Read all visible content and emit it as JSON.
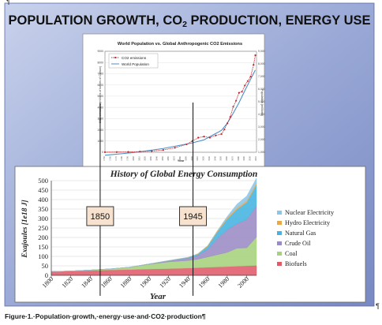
{
  "slide": {
    "title_before": "POPULATION GROWTH, CO",
    "title_sub": "2",
    "title_after": " PRODUCTION, ENERGY USE",
    "background": "#9aa9d6"
  },
  "caption": "Figure·1.·Population·growth,·energy·use·and·CO2·production¶",
  "pilcrows": [
    "¶",
    "¶"
  ],
  "chart_data": [
    {
      "type": "line",
      "title": "World Population vs. Global Anthropogenic CO2 Emissions",
      "xlabel": "Year",
      "ylabel": "CO2 emissions (millions of tonnes of Carbon)",
      "y2label": "Population (millions)",
      "ylim": [
        0,
        9000
      ],
      "y2lim": [
        1000,
        8000
      ],
      "yticks": [
        0,
        1000,
        2000,
        3000,
        4000,
        5000,
        6000,
        7000,
        8000,
        9000
      ],
      "y2ticks": [
        "1,000",
        "2,000",
        "3,000",
        "4,000",
        "5,000",
        "6,000",
        "7,000",
        "8,000",
        "9,000"
      ],
      "legend_position": "top-left",
      "grid": true,
      "colors": {
        "co2": "#c0282d",
        "population": "#4a90c8"
      },
      "series": [
        {
          "name": "CO2 emissions",
          "x": [
            1750,
            1770,
            1790,
            1810,
            1830,
            1850,
            1870,
            1890,
            1900,
            1910,
            1920,
            1930,
            1940,
            1950,
            1955,
            1960,
            1965,
            1970,
            1975,
            1980,
            1985,
            1990,
            1995,
            2000,
            2005,
            2008
          ],
          "values": [
            10,
            20,
            30,
            60,
            100,
            200,
            400,
            700,
            1000,
            1300,
            1400,
            1300,
            1500,
            1630,
            2050,
            2580,
            3150,
            4050,
            4600,
            5300,
            5400,
            5950,
            6350,
            6750,
            7800,
            8650
          ]
        },
        {
          "name": "World Population",
          "x": [
            1750,
            1800,
            1850,
            1900,
            1920,
            1940,
            1950,
            1960,
            1970,
            1980,
            1990,
            2000,
            2008
          ],
          "values": [
            790,
            980,
            1260,
            1650,
            1860,
            2300,
            2520,
            3020,
            3700,
            4440,
            5270,
            6080,
            6700
          ]
        }
      ]
    },
    {
      "type": "area",
      "title": "History of Global Energy Consumption",
      "xlabel": "Year",
      "ylabel": "Exajoules [1e18 J]",
      "ylim": [
        0,
        500
      ],
      "yticks": [
        0,
        50,
        100,
        150,
        200,
        250,
        300,
        350,
        400,
        450,
        500
      ],
      "xticks": [
        1800,
        1820,
        1840,
        1860,
        1880,
        1900,
        1920,
        1940,
        1960,
        1980,
        2000
      ],
      "legend_position": "right",
      "grid": true,
      "x": [
        1800,
        1820,
        1840,
        1860,
        1880,
        1900,
        1920,
        1940,
        1950,
        1960,
        1970,
        1980,
        1990,
        2000,
        2010
      ],
      "series": [
        {
          "name": "Biofuels",
          "color": "#e05a6a",
          "values": [
            20,
            22,
            25,
            28,
            30,
            33,
            35,
            38,
            40,
            42,
            44,
            46,
            48,
            50,
            52
          ]
        },
        {
          "name": "Coal",
          "color": "#a6d17d",
          "values": [
            0,
            1,
            3,
            6,
            12,
            25,
            36,
            40,
            45,
            55,
            65,
            75,
            95,
            95,
            150
          ]
        },
        {
          "name": "Crude Oil",
          "color": "#9b8bc4",
          "values": [
            0,
            0,
            0,
            0,
            1,
            2,
            5,
            12,
            20,
            40,
            85,
            120,
            130,
            150,
            165
          ]
        },
        {
          "name": "Natural Gas",
          "color": "#46b4e0",
          "values": [
            0,
            0,
            0,
            0,
            0,
            0,
            1,
            3,
            6,
            15,
            35,
            55,
            75,
            90,
            110
          ]
        },
        {
          "name": "Hydro Electricity",
          "color": "#e8a94a",
          "values": [
            0,
            0,
            0,
            0,
            0,
            0,
            1,
            2,
            3,
            4,
            6,
            7,
            8,
            9,
            10
          ]
        },
        {
          "name": "Nuclear Electricity",
          "color": "#8bc6e8",
          "values": [
            0,
            0,
            0,
            0,
            0,
            0,
            0,
            0,
            0,
            0.5,
            1,
            8,
            20,
            25,
            27
          ]
        }
      ],
      "markers": [
        {
          "year": 1850,
          "label": "1850"
        },
        {
          "year": 1945,
          "label": "1945"
        }
      ]
    }
  ]
}
